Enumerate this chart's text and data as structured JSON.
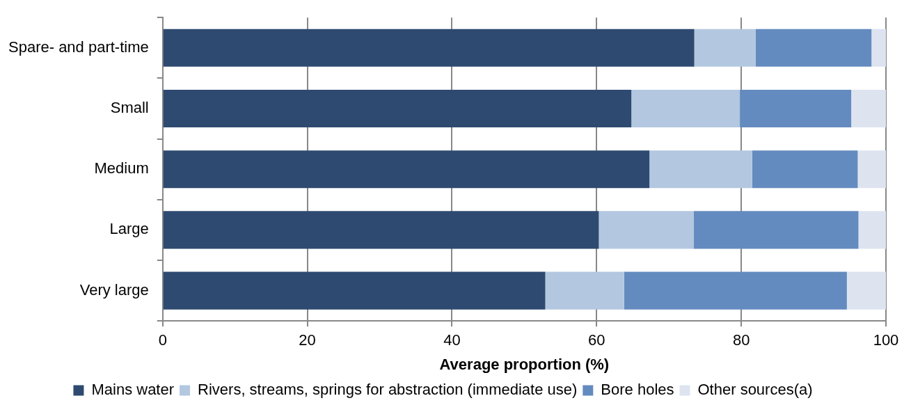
{
  "chart_data": {
    "type": "bar",
    "orientation": "horizontal",
    "stacked": true,
    "xlabel": "Average proportion (%)",
    "categories": [
      "Spare- and part-time",
      "Small",
      "Medium",
      "Large",
      "Very large"
    ],
    "series": [
      {
        "name": "Mains water",
        "color": "#2e4a70",
        "values": [
          73.5,
          64.8,
          67.3,
          60.3,
          52.9
        ]
      },
      {
        "name": "Rivers, streams, springs for abstraction (immediate use)",
        "color": "#b3c7e0",
        "values": [
          8.5,
          15.0,
          14.2,
          13.1,
          10.9
        ]
      },
      {
        "name": "Bore holes",
        "color": "#648bbf",
        "values": [
          16.0,
          15.4,
          14.6,
          22.8,
          30.8
        ]
      },
      {
        "name": "Other sources(a)",
        "color": "#dde4f0",
        "values": [
          2.0,
          4.8,
          3.9,
          3.8,
          5.4
        ]
      }
    ],
    "xlim": [
      0,
      100
    ],
    "xticks": [
      0,
      20,
      40,
      60,
      80,
      100
    ],
    "grid": "x",
    "legend": "bottom"
  }
}
